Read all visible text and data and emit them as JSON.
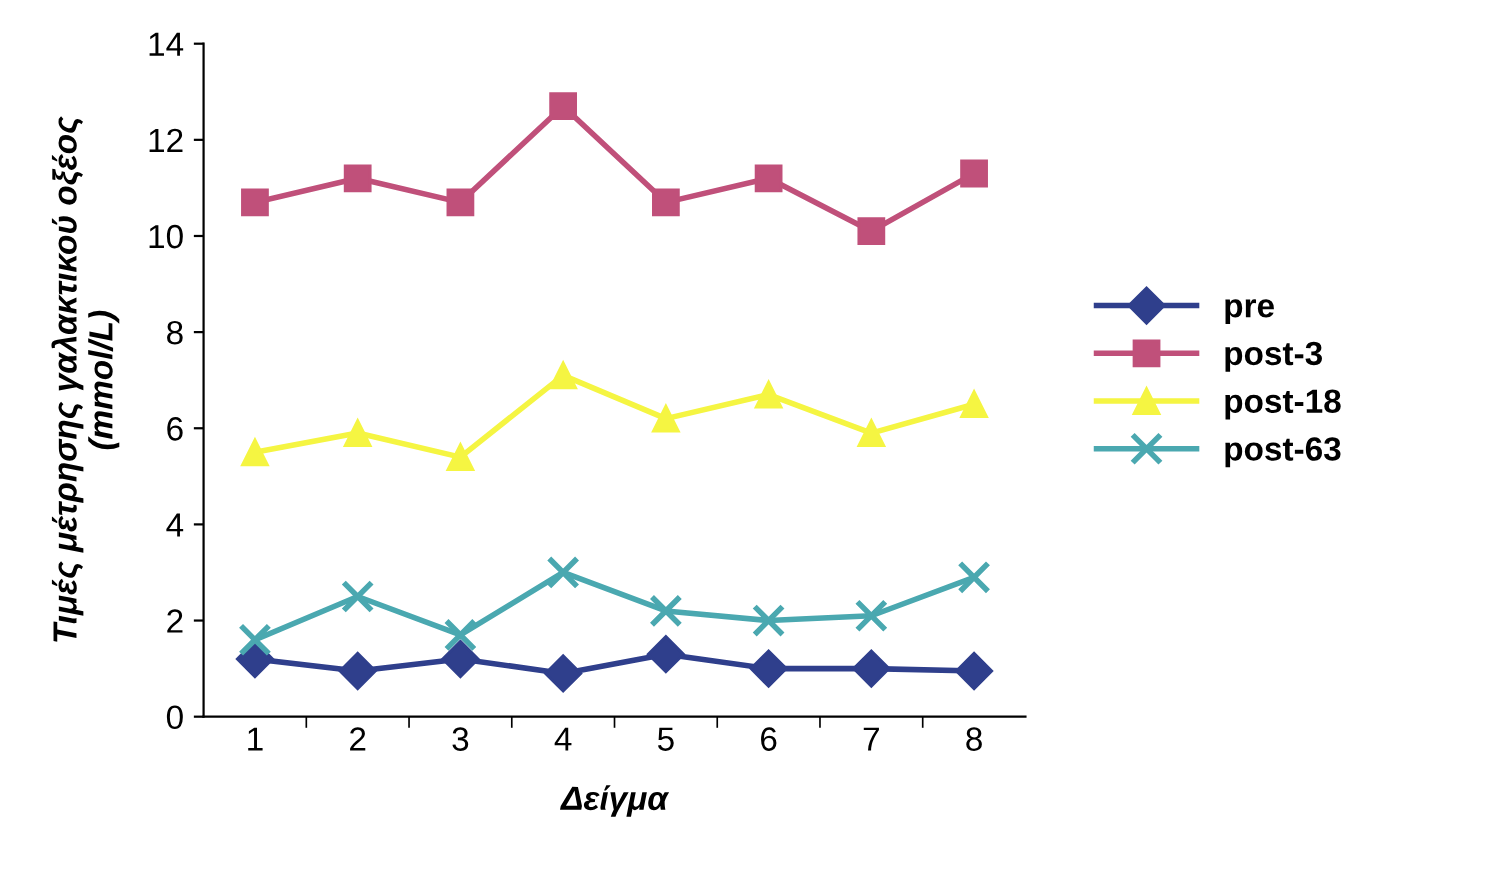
{
  "chart_data": {
    "type": "line",
    "xlabel": "Δείγμα",
    "ylabel": "Τιμές μέτρησης γαλακτικού οξέος\n(mmol/L)",
    "categories": [
      "1",
      "2",
      "3",
      "4",
      "5",
      "6",
      "7",
      "8"
    ],
    "ylim": [
      0,
      14
    ],
    "yticks": [
      0,
      2,
      4,
      6,
      8,
      10,
      12,
      14
    ],
    "grid": false,
    "legend": "right",
    "series": [
      {
        "name": "pre",
        "color": "#2f3f8c",
        "marker": "diamond",
        "values": [
          1.2,
          0.95,
          1.2,
          0.9,
          1.3,
          1.0,
          1.0,
          0.95
        ]
      },
      {
        "name": "post-3",
        "color": "#c0507a",
        "marker": "square",
        "values": [
          10.7,
          11.2,
          10.7,
          12.7,
          10.7,
          11.2,
          10.1,
          11.3
        ]
      },
      {
        "name": "post-18",
        "color": "#f5f542",
        "marker": "triangle",
        "values": [
          5.5,
          5.9,
          5.4,
          7.1,
          6.2,
          6.7,
          5.9,
          6.5
        ]
      },
      {
        "name": "post-63",
        "color": "#4aa8b0",
        "marker": "cross",
        "values": [
          1.6,
          2.5,
          1.7,
          3.0,
          2.2,
          2.0,
          2.1,
          2.9
        ]
      }
    ]
  }
}
